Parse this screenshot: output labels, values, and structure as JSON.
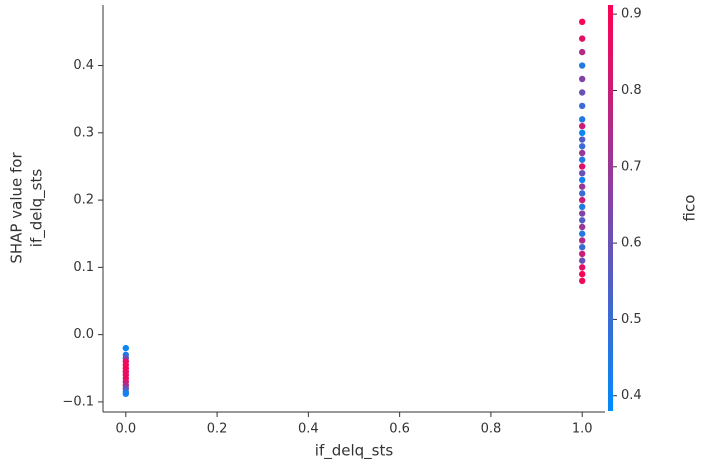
{
  "chart_data": {
    "type": "scatter",
    "xlabel": "if_delq_sts",
    "ylabel": [
      "SHAP value for",
      "if_delq_sts"
    ],
    "colorbar_label": "fico",
    "colormap": [
      "#008bfb",
      "#ff0052"
    ],
    "clim": [
      0.38,
      0.912
    ],
    "cticks": [
      0.4,
      0.5,
      0.6,
      0.7,
      0.8,
      0.9
    ],
    "xlim": [
      -0.05,
      1.05
    ],
    "ylim": [
      -0.115,
      0.49
    ],
    "xticks": [
      {
        "value": 0,
        "label": "0.0"
      },
      0.2,
      0.4,
      0.6,
      0.8,
      {
        "value": 1,
        "label": "1.0"
      }
    ],
    "yticks": [
      {
        "value": -0.1,
        "label": "−0.1"
      },
      {
        "value": 0,
        "label": "0.0"
      },
      0.1,
      0.2,
      0.3,
      0.4
    ],
    "series": [
      {
        "name": "if_delq_sts",
        "x": [
          0,
          0,
          0,
          0,
          0,
          0,
          0,
          0,
          0,
          0,
          0,
          0,
          0,
          0,
          1,
          1,
          1,
          1,
          1,
          1,
          1,
          1,
          1,
          1,
          1,
          1,
          1,
          1,
          1,
          1,
          1,
          1,
          1,
          1,
          1,
          1,
          1,
          1,
          1,
          1,
          1,
          1,
          1,
          1,
          1,
          1
        ],
        "values": [
          -0.02,
          -0.03,
          -0.035,
          -0.04,
          -0.045,
          -0.05,
          -0.055,
          -0.06,
          -0.065,
          -0.07,
          -0.075,
          -0.08,
          -0.085,
          -0.088,
          0.08,
          0.09,
          0.1,
          0.11,
          0.12,
          0.13,
          0.14,
          0.15,
          0.16,
          0.17,
          0.18,
          0.19,
          0.2,
          0.21,
          0.22,
          0.23,
          0.24,
          0.25,
          0.26,
          0.27,
          0.28,
          0.29,
          0.3,
          0.31,
          0.32,
          0.34,
          0.36,
          0.38,
          0.4,
          0.42,
          0.44,
          0.465
        ],
        "color_values": [
          0.4,
          0.45,
          0.6,
          0.85,
          0.88,
          0.9,
          0.87,
          0.85,
          0.88,
          0.82,
          0.75,
          0.6,
          0.5,
          0.42,
          0.88,
          0.9,
          0.85,
          0.6,
          0.8,
          0.5,
          0.75,
          0.45,
          0.7,
          0.55,
          0.65,
          0.45,
          0.8,
          0.5,
          0.7,
          0.42,
          0.6,
          0.85,
          0.45,
          0.7,
          0.5,
          0.55,
          0.4,
          0.8,
          0.45,
          0.5,
          0.6,
          0.65,
          0.45,
          0.75,
          0.85,
          0.9
        ]
      }
    ]
  }
}
